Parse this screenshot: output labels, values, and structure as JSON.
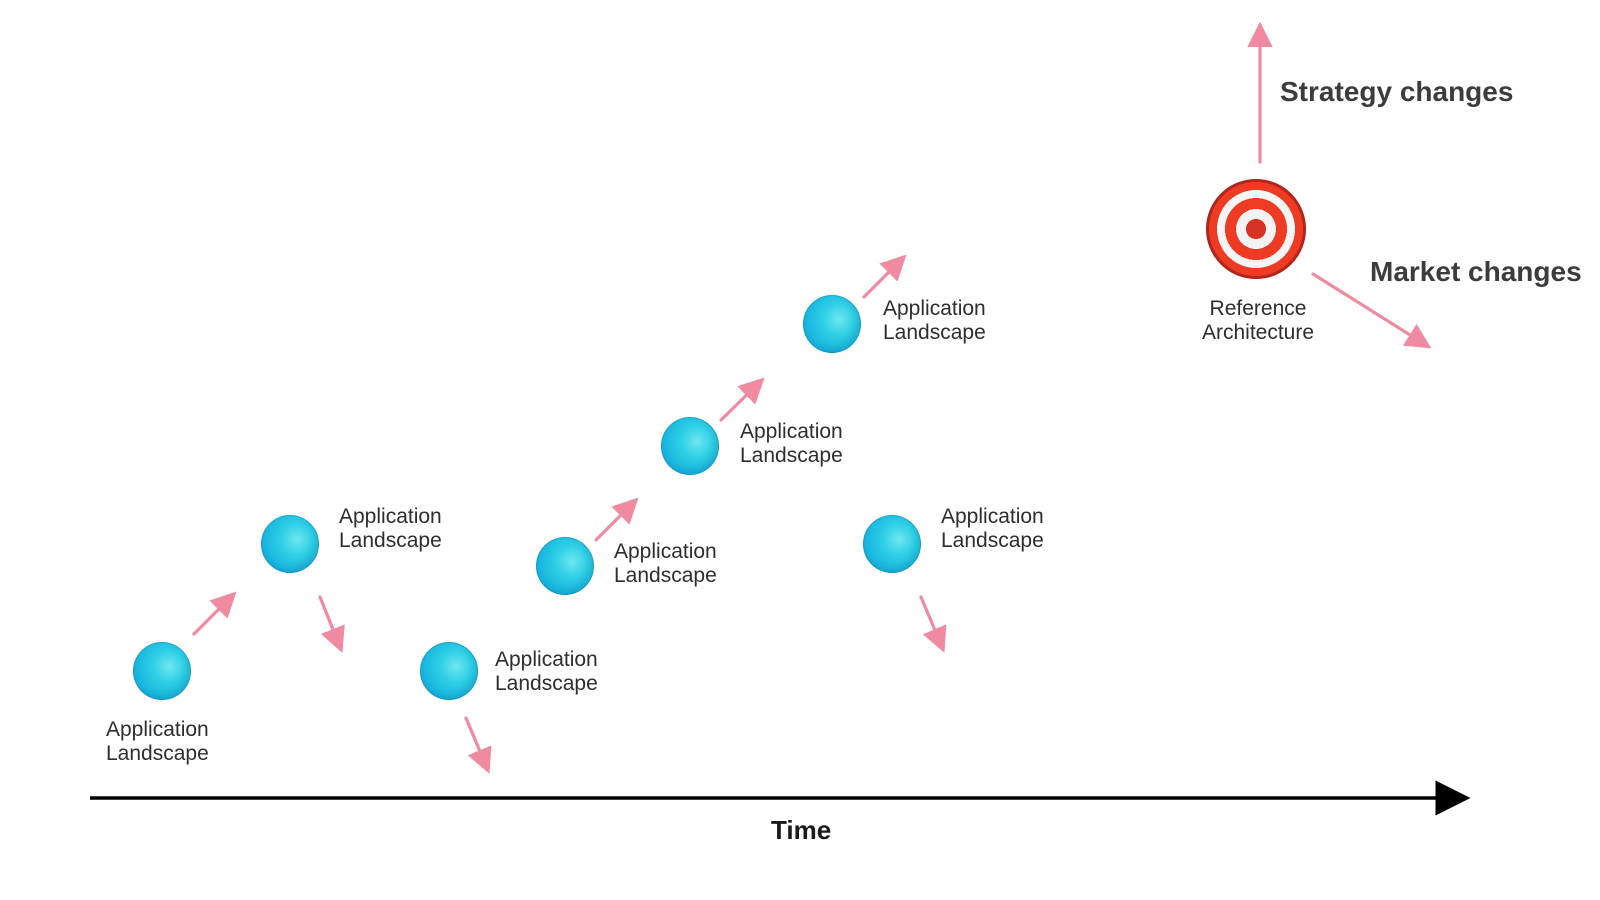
{
  "diagram": {
    "nodes": [
      {
        "label_line1": "Application",
        "label_line2": "Landscape"
      },
      {
        "label_line1": "Application",
        "label_line2": "Landscape"
      },
      {
        "label_line1": "Application",
        "label_line2": "Landscape"
      },
      {
        "label_line1": "Application",
        "label_line2": "Landscape"
      },
      {
        "label_line1": "Application",
        "label_line2": "Landscape"
      },
      {
        "label_line1": "Application",
        "label_line2": "Landscape"
      },
      {
        "label_line1": "Application",
        "label_line2": "Landscape"
      }
    ],
    "reference": {
      "label_line1": "Reference",
      "label_line2": "Architecture",
      "icon": "target-icon"
    },
    "annotations": {
      "strategy": "Strategy changes",
      "market": "Market changes",
      "time": "Time"
    },
    "colors": {
      "node": "#18b4df",
      "arrow": "#f08aa0",
      "axis": "#000000",
      "target_red": "#ef3a24"
    }
  }
}
